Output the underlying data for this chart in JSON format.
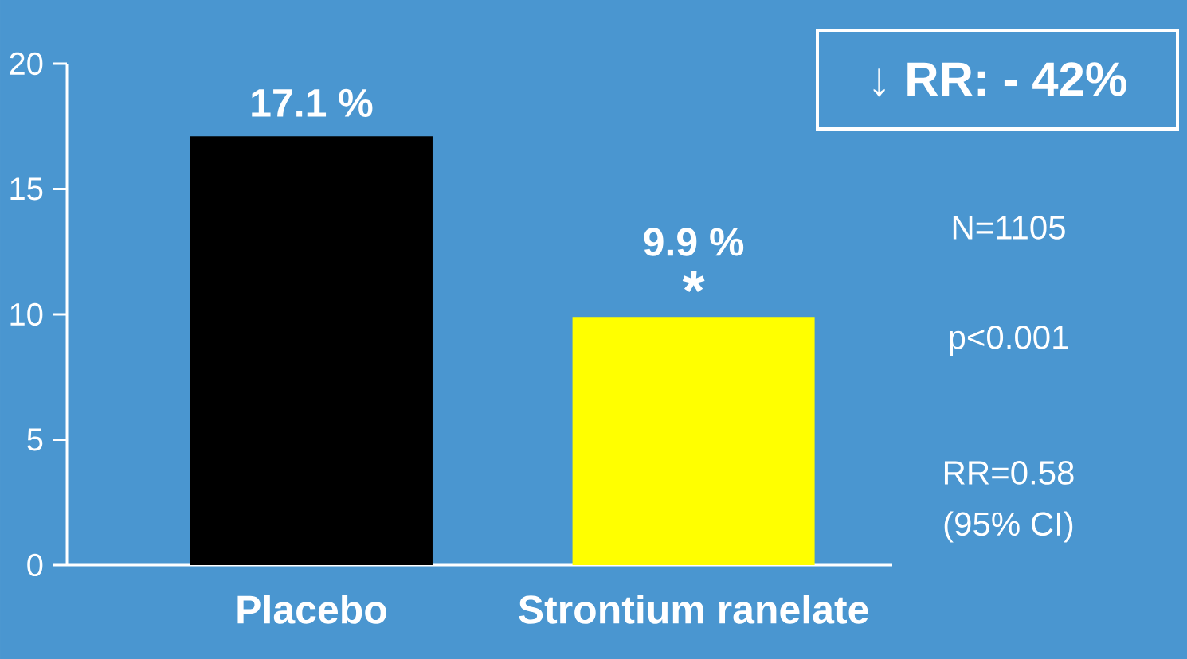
{
  "chart_data": {
    "type": "bar",
    "categories": [
      "Placebo",
      "Strontium ranelate"
    ],
    "values": [
      17.1,
      9.9
    ],
    "colors": [
      "#000000",
      "#ffff00"
    ],
    "value_labels": [
      "17.1 %",
      "9.9 %"
    ],
    "ylim": [
      0,
      20
    ],
    "yticks": [
      0,
      5,
      10,
      15,
      20
    ],
    "annotations": [
      {
        "text": "*",
        "x": "Strontium ranelate",
        "y": 9.9
      },
      "↓ RR: - 42%",
      "N=1105",
      "p<0.001",
      "RR=0.58",
      "(95% CI)"
    ]
  }
}
